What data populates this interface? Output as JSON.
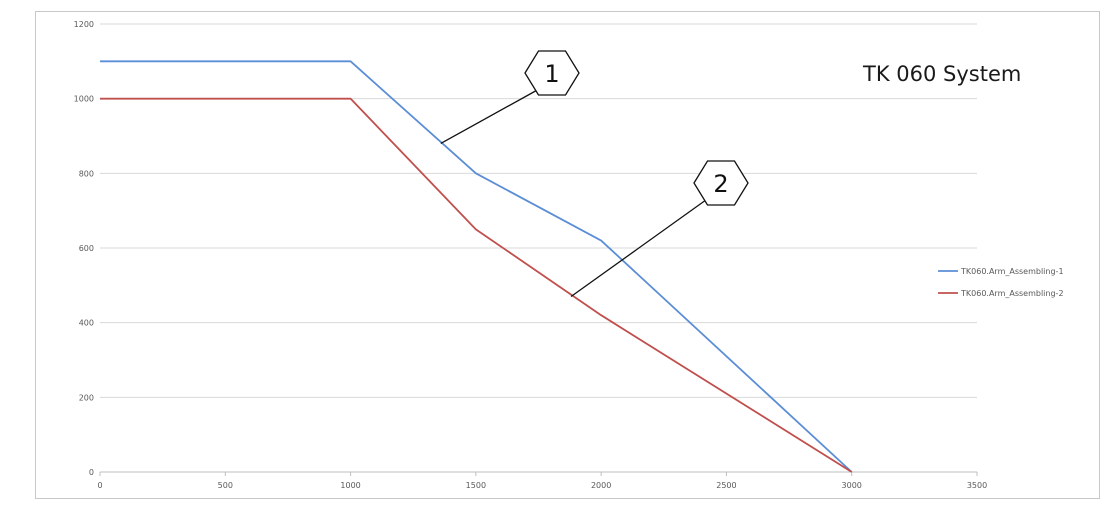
{
  "chart_data": {
    "type": "line",
    "title": "TK 060 System",
    "xlim": [
      0,
      3500
    ],
    "ylim": [
      0,
      1200
    ],
    "x_ticks": [
      "0",
      "500",
      "1000",
      "1500",
      "2000",
      "2500",
      "3000",
      "3500"
    ],
    "y_ticks": [
      "0",
      "200",
      "400",
      "600",
      "800",
      "1000",
      "1200"
    ],
    "grid": "horizontal",
    "legend_position": "right",
    "series": [
      {
        "name": "TK060.Arm_Assembling-1",
        "color": "#5b8ed6",
        "x": [
          0,
          1000,
          1500,
          2000,
          3000
        ],
        "y": [
          1100,
          1100,
          800,
          620,
          0
        ]
      },
      {
        "name": "TK060.Arm_Assembling-2",
        "color": "#c0504d",
        "x": [
          0,
          1000,
          1500,
          2000,
          3000
        ],
        "y": [
          1000,
          1000,
          650,
          420,
          0
        ]
      }
    ],
    "annotations": [
      {
        "label": "1",
        "target_x": 1360,
        "target_y": 880
      },
      {
        "label": "2",
        "target_x": 1880,
        "target_y": 470
      }
    ]
  }
}
